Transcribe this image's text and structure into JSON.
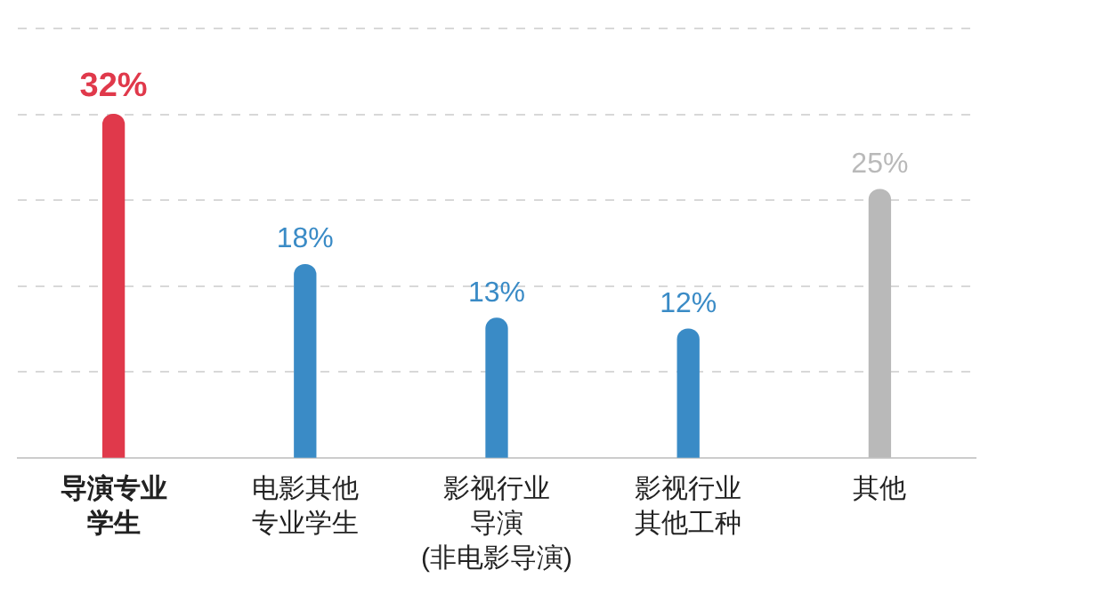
{
  "chart_data": {
    "type": "bar",
    "categories": [
      "导演专业学生",
      "电影其他专业学生",
      "影视行业导演(非电影导演)",
      "影视行业其他工种",
      "其他"
    ],
    "values": [
      32,
      18,
      13,
      12,
      25
    ],
    "value_labels": [
      "32%",
      "18%",
      "13%",
      "12%",
      "25%"
    ],
    "colors": [
      "#e0394b",
      "#3a8bc6",
      "#3a8bc6",
      "#3a8bc6",
      "#b9b9b9"
    ],
    "ylim": [
      0,
      40
    ],
    "yticks": [
      {
        "value": 0,
        "label": null
      },
      {
        "value": 8,
        "label": null
      },
      {
        "value": 16,
        "label": null
      },
      {
        "value": 24,
        "label": null
      },
      {
        "value": 32,
        "label": null
      },
      {
        "value": 40,
        "label": null
      }
    ],
    "grid": "y",
    "tick_labels": "x",
    "legend": false
  }
}
